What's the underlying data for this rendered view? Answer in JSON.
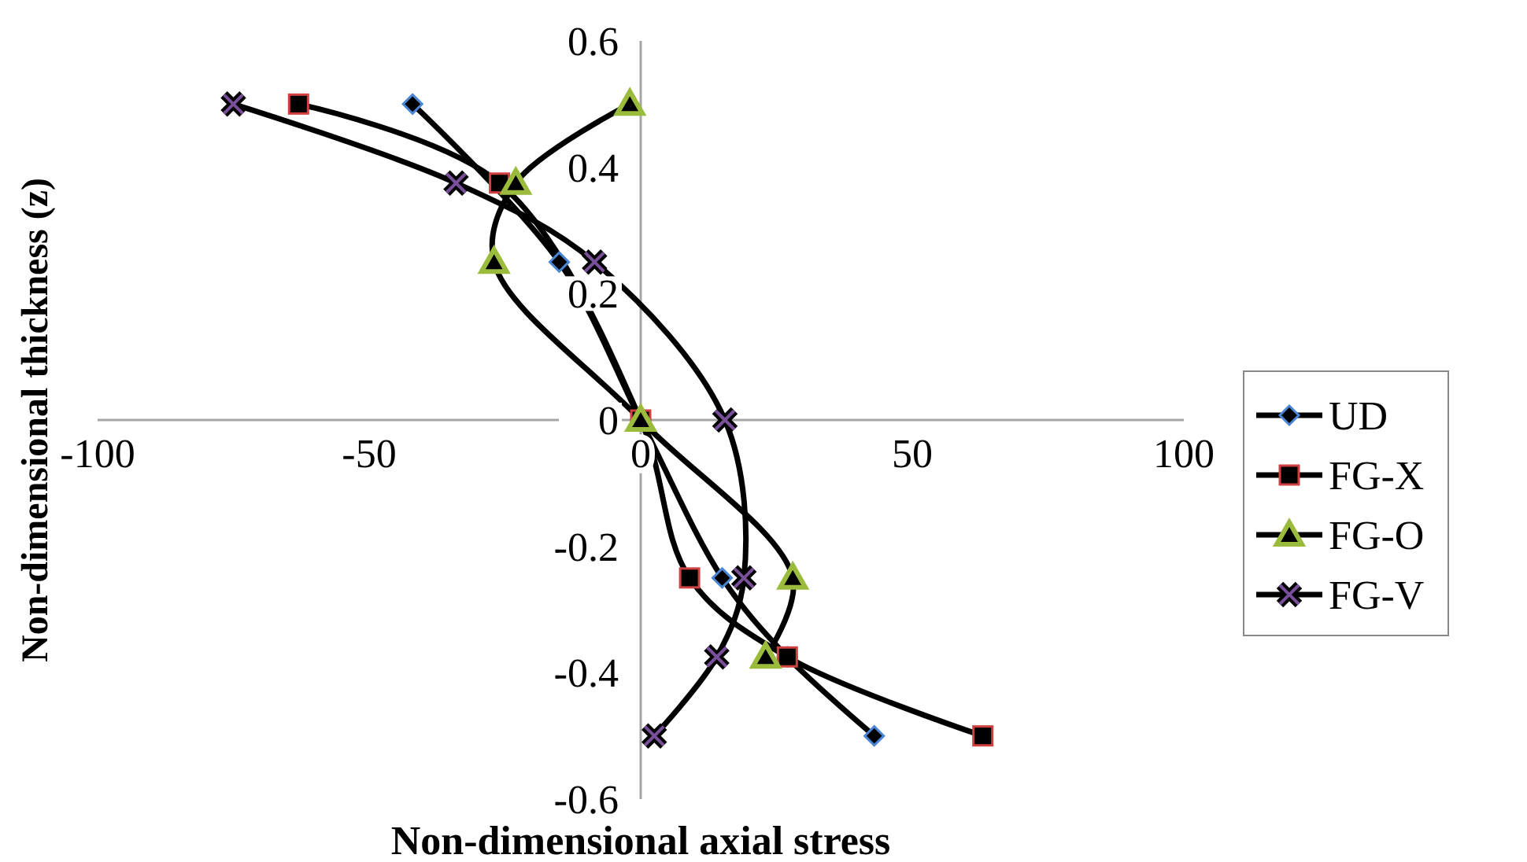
{
  "chart_data": {
    "type": "line",
    "xlabel": "Non-dimensional axial stress",
    "ylabel": "Non-dimensional thickness (z)",
    "x": [
      0.5,
      0.375,
      0.25,
      0,
      -0.25,
      -0.375,
      -0.5
    ],
    "xlim": [
      -100,
      100
    ],
    "xticks": [
      -100,
      -50,
      0,
      50,
      100
    ],
    "ylim": [
      -0.6,
      0.6
    ],
    "yticks": [
      -0.6,
      -0.4,
      -0.2,
      0,
      0.2,
      0.4,
      0.6
    ],
    "orientation": "horizontal",
    "grid": false,
    "legend": "right",
    "line_style": "solid",
    "series": [
      {
        "name": "UD",
        "color": "#4a86d4",
        "marker": "diamond",
        "values": [
          -42,
          null,
          -15,
          0,
          15,
          27,
          43
        ]
      },
      {
        "name": "FG-X",
        "color": "#d04040",
        "marker": "square",
        "values": [
          -63,
          -26,
          null,
          0,
          9,
          27,
          63
        ]
      },
      {
        "name": "FG-O",
        "color": "#9bbb3c",
        "marker": "triangle",
        "values": [
          -2,
          -23,
          -27,
          0,
          28,
          23,
          null
        ]
      },
      {
        "name": "FG-V",
        "color": "#7a4f9a",
        "marker": "cross",
        "values": [
          -75,
          -34,
          -8.5,
          15.5,
          19,
          14,
          2.5
        ]
      }
    ]
  }
}
